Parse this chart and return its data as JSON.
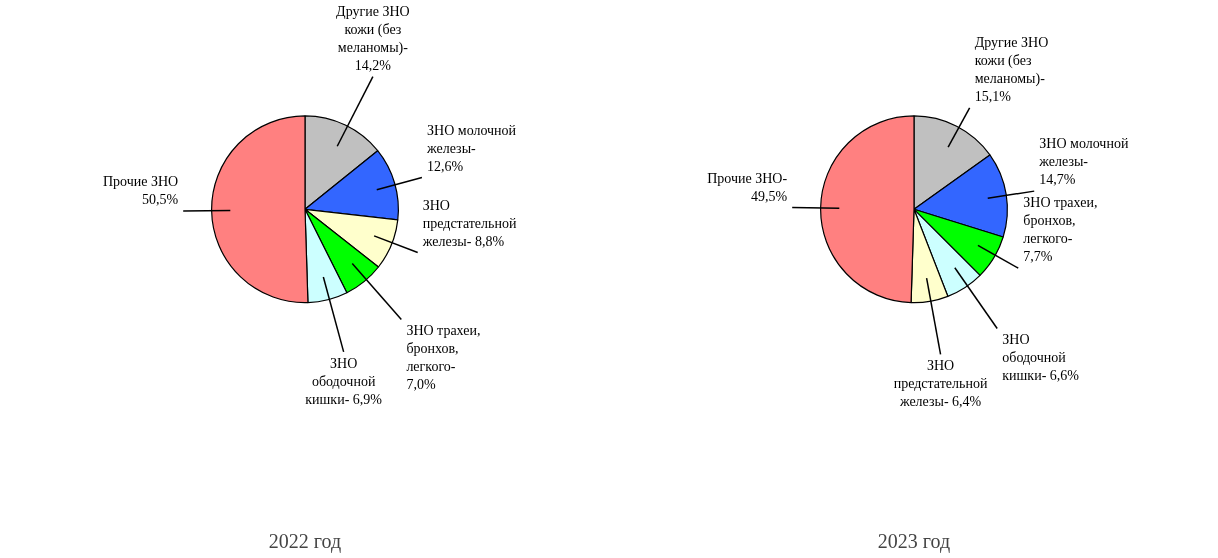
{
  "chart_data": [
    {
      "type": "pie",
      "title": "2022 год",
      "categories": [
        "Другие ЗНО кожи (без меланомы)-",
        "ЗНО молочной железы-",
        "ЗНО предстательной железы-",
        "ЗНО трахеи, бронхов, легкого-",
        "ЗНО ободочной кишки-",
        "Прочие ЗНО"
      ],
      "values": [
        14.2,
        12.6,
        8.8,
        7.0,
        6.9,
        50.5
      ],
      "value_labels": [
        "14,2%",
        "12,6%",
        "8,8%",
        "7,0%",
        "6,9%",
        "50,5%"
      ],
      "colors": [
        "#c0c0c0",
        "#3366ff",
        "#ffffcc",
        "#00ff00",
        "#ccffff",
        "#ff8080"
      ]
    },
    {
      "type": "pie",
      "title": "2023 год",
      "categories": [
        "Другие ЗНО кожи (без меланомы)-",
        "ЗНО молочной железы-",
        "ЗНО трахеи, бронхов, легкого-",
        "ЗНО ободочной кишки-",
        "ЗНО предстательной железы-",
        "Прочие ЗНО-"
      ],
      "values": [
        15.1,
        14.7,
        7.7,
        6.6,
        6.4,
        49.5
      ],
      "value_labels": [
        "15,1%",
        "14,7%",
        "7,7%",
        "6,6%",
        "6,4%",
        "49,5%"
      ],
      "colors": [
        "#c0c0c0",
        "#3366ff",
        "#00ff00",
        "#ccffff",
        "#ffffcc",
        "#ff8080"
      ]
    }
  ]
}
